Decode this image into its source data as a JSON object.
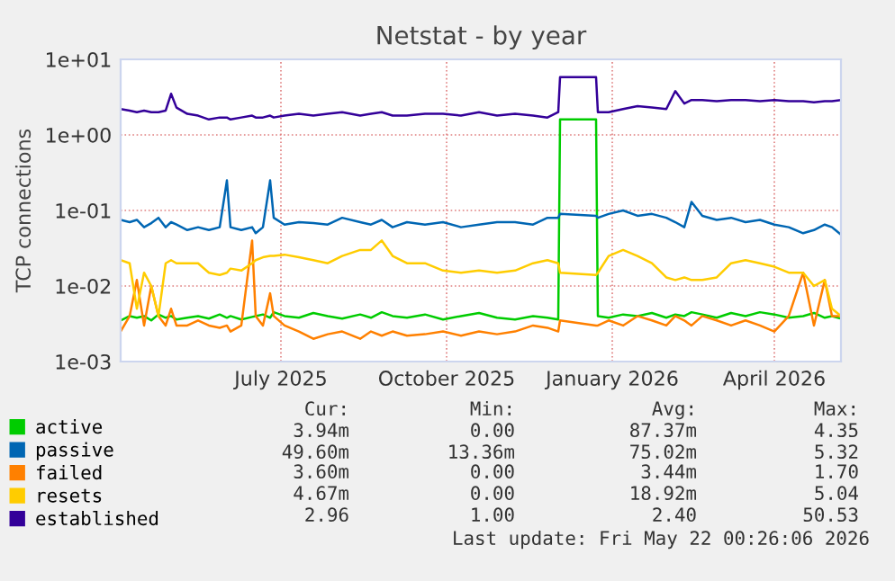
{
  "chart_data": {
    "type": "line",
    "title": "Netstat - by year",
    "ylabel": "TCP connections",
    "log": "y",
    "grid": true,
    "legend": "bottom left",
    "x": [
      "2025-04-17",
      "2025-04-22",
      "2025-04-26",
      "2025-04-30",
      "2025-05-04",
      "2025-05-08",
      "2025-05-12",
      "2025-05-15",
      "2025-05-18",
      "2025-05-24",
      "2025-05-30",
      "2025-06-05",
      "2025-06-11",
      "2025-06-15",
      "2025-06-17",
      "2025-06-23",
      "2025-06-29",
      "2025-07-01",
      "2025-07-05",
      "2025-07-09",
      "2025-07-11",
      "2025-07-17",
      "2025-07-25",
      "2025-08-02",
      "2025-08-10",
      "2025-08-18",
      "2025-08-28",
      "2025-09-03",
      "2025-09-09",
      "2025-09-15",
      "2025-09-23",
      "2025-10-03",
      "2025-10-13",
      "2025-10-23",
      "2025-11-02",
      "2025-11-12",
      "2025-11-22",
      "2025-12-02",
      "2025-12-10",
      "2025-12-16",
      "2025-12-17",
      "2026-01-06",
      "2026-01-07",
      "2026-01-13",
      "2026-01-21",
      "2026-01-29",
      "2026-02-06",
      "2026-02-14",
      "2026-02-19",
      "2026-02-24",
      "2026-02-28",
      "2026-03-06",
      "2026-03-14",
      "2026-03-22",
      "2026-03-30",
      "2026-04-07",
      "2026-04-15",
      "2026-04-23",
      "2026-05-01",
      "2026-05-07",
      "2026-05-13",
      "2026-05-17",
      "2026-05-22"
    ],
    "xlim": [
      "2025-04-17",
      "2026-05-22"
    ],
    "xticks": [
      {
        "value": "2025-07-15",
        "label": "July 2025"
      },
      {
        "value": "2025-10-15",
        "label": "October 2025"
      },
      {
        "value": "2026-01-15",
        "label": "January 2026"
      },
      {
        "value": "2026-04-15",
        "label": "April 2026"
      }
    ],
    "ylim": [
      0.001,
      10
    ],
    "yticks": [
      {
        "value": 0.001,
        "label": "1e-03"
      },
      {
        "value": 0.01,
        "label": "1e-02"
      },
      {
        "value": 0.1,
        "label": "1e-01"
      },
      {
        "value": 1,
        "label": "1e+00"
      },
      {
        "value": 10,
        "label": "1e+01"
      }
    ],
    "series": [
      {
        "name": "active",
        "color": "#00cc00",
        "values": [
          0.0035,
          0.004,
          0.0038,
          0.004,
          0.0035,
          0.0042,
          0.0038,
          0.004,
          0.0036,
          0.0038,
          0.004,
          0.0037,
          0.0042,
          0.0038,
          0.004,
          0.0036,
          0.0039,
          0.004,
          0.0042,
          0.0038,
          0.0045,
          0.004,
          0.0038,
          0.0044,
          0.004,
          0.0037,
          0.0042,
          0.0038,
          0.0045,
          0.004,
          0.0038,
          0.0042,
          0.0036,
          0.004,
          0.0044,
          0.0038,
          0.0036,
          0.004,
          0.0038,
          0.0036,
          1.6,
          1.6,
          0.004,
          0.0038,
          0.0042,
          0.004,
          0.0044,
          0.0038,
          0.0042,
          0.004,
          0.0045,
          0.0042,
          0.0038,
          0.0044,
          0.004,
          0.0045,
          0.0042,
          0.0038,
          0.004,
          0.0044,
          0.0038,
          0.004,
          0.0037
        ]
      },
      {
        "name": "passive",
        "color": "#0066b3",
        "values": [
          0.075,
          0.07,
          0.075,
          0.06,
          0.068,
          0.08,
          0.06,
          0.07,
          0.065,
          0.055,
          0.06,
          0.055,
          0.06,
          0.25,
          0.06,
          0.055,
          0.06,
          0.05,
          0.06,
          0.25,
          0.08,
          0.065,
          0.07,
          0.068,
          0.065,
          0.08,
          0.07,
          0.065,
          0.075,
          0.06,
          0.07,
          0.065,
          0.07,
          0.06,
          0.065,
          0.07,
          0.07,
          0.065,
          0.08,
          0.08,
          0.09,
          0.085,
          0.08,
          0.09,
          0.1,
          0.085,
          0.09,
          0.08,
          0.07,
          0.06,
          0.13,
          0.085,
          0.075,
          0.08,
          0.07,
          0.075,
          0.065,
          0.06,
          0.05,
          0.055,
          0.065,
          0.06,
          0.048
        ]
      },
      {
        "name": "failed",
        "color": "#ff8000",
        "values": [
          0.0025,
          0.004,
          0.012,
          0.003,
          0.01,
          0.004,
          0.003,
          0.005,
          0.003,
          0.003,
          0.0035,
          0.003,
          0.0028,
          0.003,
          0.0025,
          0.003,
          0.04,
          0.004,
          0.003,
          0.008,
          0.004,
          0.003,
          0.0025,
          0.002,
          0.0023,
          0.0025,
          0.002,
          0.0025,
          0.0022,
          0.0025,
          0.0022,
          0.0023,
          0.0025,
          0.0022,
          0.0025,
          0.0023,
          0.0025,
          0.003,
          0.0028,
          0.0025,
          0.0035,
          0.003,
          0.003,
          0.0035,
          0.003,
          0.004,
          0.0035,
          0.003,
          0.004,
          0.0035,
          0.003,
          0.004,
          0.0035,
          0.003,
          0.0035,
          0.003,
          0.0025,
          0.004,
          0.015,
          0.003,
          0.012,
          0.004,
          0.004
        ]
      },
      {
        "name": "resets",
        "color": "#ffcc00",
        "values": [
          0.022,
          0.02,
          0.005,
          0.015,
          0.01,
          0.004,
          0.02,
          0.022,
          0.02,
          0.02,
          0.02,
          0.015,
          0.014,
          0.015,
          0.017,
          0.016,
          0.02,
          0.022,
          0.024,
          0.025,
          0.025,
          0.026,
          0.024,
          0.022,
          0.02,
          0.025,
          0.03,
          0.03,
          0.04,
          0.025,
          0.02,
          0.02,
          0.016,
          0.015,
          0.016,
          0.015,
          0.016,
          0.02,
          0.022,
          0.02,
          0.015,
          0.014,
          0.015,
          0.025,
          0.03,
          0.025,
          0.02,
          0.013,
          0.012,
          0.013,
          0.012,
          0.012,
          0.013,
          0.02,
          0.022,
          0.02,
          0.018,
          0.015,
          0.015,
          0.01,
          0.012,
          0.005,
          0.004
        ]
      },
      {
        "name": "established",
        "color": "#330099",
        "values": [
          2.2,
          2.1,
          2.0,
          2.1,
          2.0,
          2.0,
          2.1,
          3.5,
          2.3,
          1.9,
          1.8,
          1.6,
          1.7,
          1.7,
          1.6,
          1.7,
          1.8,
          1.7,
          1.7,
          1.8,
          1.7,
          1.8,
          1.9,
          1.8,
          1.9,
          2.0,
          1.8,
          1.9,
          2.0,
          1.8,
          1.8,
          1.9,
          1.9,
          1.8,
          2.0,
          1.8,
          1.9,
          1.8,
          1.7,
          2.0,
          5.8,
          5.8,
          2.0,
          2.0,
          2.2,
          2.4,
          2.3,
          2.2,
          3.8,
          2.6,
          2.9,
          2.9,
          2.8,
          2.9,
          2.9,
          2.8,
          2.9,
          2.8,
          2.8,
          2.7,
          2.8,
          2.8,
          2.9
        ]
      }
    ],
    "annotations": [
      "Cur:",
      "Min:",
      "Avg:",
      "Max:",
      "3.94m",
      "0.00",
      "87.37m",
      "4.35",
      "49.60m",
      "13.36m",
      "75.02m",
      "5.32",
      "3.60m",
      "0.00",
      "3.44m",
      "1.70",
      "4.67m",
      "0.00",
      "18.92m",
      "5.04",
      "2.96",
      "1.00",
      "2.40",
      "50.53",
      "Last update: Fri May 22 00:26:06 2026"
    ]
  }
}
